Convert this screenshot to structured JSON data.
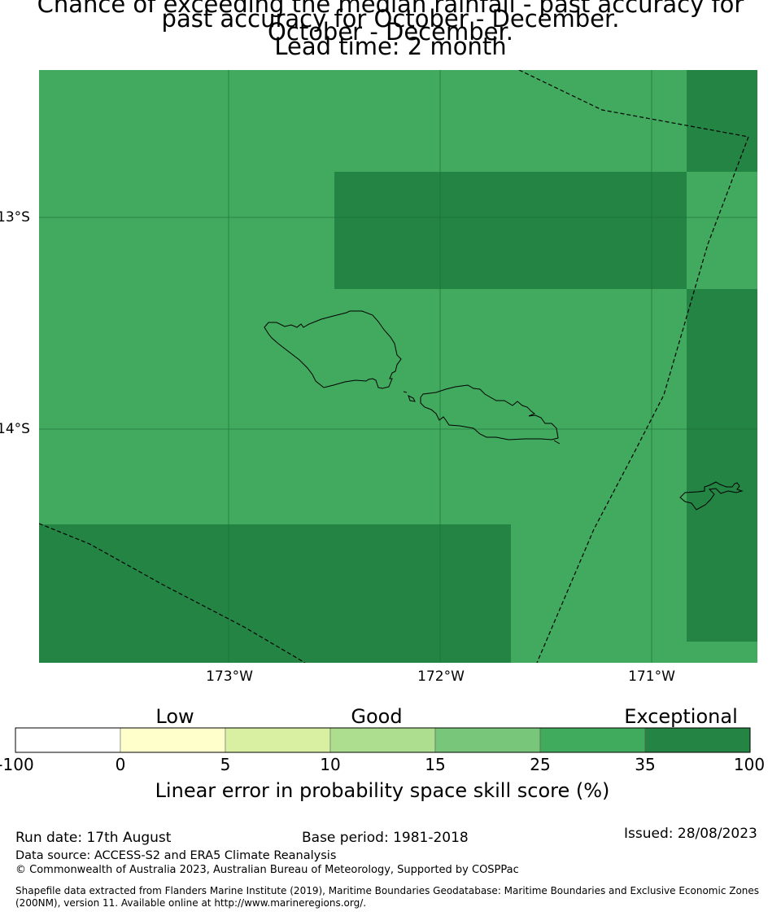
{
  "title": {
    "line1": "Chance of exceeding the median rainfall - past accuracy for October - December.",
    "line2": "past accuracy for October - December.",
    "line3": "Lead time: 2 month"
  },
  "map": {
    "region": "Samoa",
    "lat_ticks": [
      "13°S",
      "14°S"
    ],
    "lon_ticks": [
      "173°W",
      "172°W",
      "171°W"
    ],
    "background_color": "#41aa5e",
    "exceptional_color": "#238444",
    "cells": [
      {
        "lon": [
          -172.5,
          -170.83
        ],
        "lat": [
          -12.75,
          -13.3
        ],
        "category": "35-100"
      },
      {
        "lon": [
          -170.83,
          -170.5
        ],
        "lat": [
          -12.3,
          -12.75
        ],
        "category": "35-100"
      },
      {
        "lon": [
          -170.83,
          -170.5
        ],
        "lat": [
          -13.3,
          -14.97
        ],
        "category": "35-100"
      },
      {
        "lon": [
          -173.9,
          -171.67
        ],
        "lat": [
          -14.45,
          -15.1
        ],
        "category": "35-100"
      }
    ]
  },
  "colorbar": {
    "categories": [
      "Low",
      "Good",
      "Exceptional"
    ],
    "ticks": [
      "-100",
      "0",
      "5",
      "10",
      "15",
      "25",
      "35",
      "100"
    ],
    "colors": [
      "#ffffff",
      "#ffffcc",
      "#d9f0a3",
      "#addd8e",
      "#78c679",
      "#41ab5d",
      "#238443"
    ],
    "label": "Linear error in probability space skill score (%)"
  },
  "footer": {
    "run_date": "Run date: 17th August",
    "base_period": "Base period: 1981-2018",
    "issued": "Issued: 28/08/2023",
    "data_source": "Data source: ACCESS-S2 and ERA5 Climate Reanalysis",
    "copyright": "© Commonwealth of Australia 2023, Australian Bureau of Meteorology, Supported by COSPPac",
    "shapefile_line1": "Shapefile data extracted from Flanders Marine Institute (2019), Maritime Boundaries Geodatabase: Maritime Boundaries and Exclusive Economic Zones",
    "shapefile_line2": "(200NM), version 11. Available online at http://www.marineregions.org/."
  }
}
